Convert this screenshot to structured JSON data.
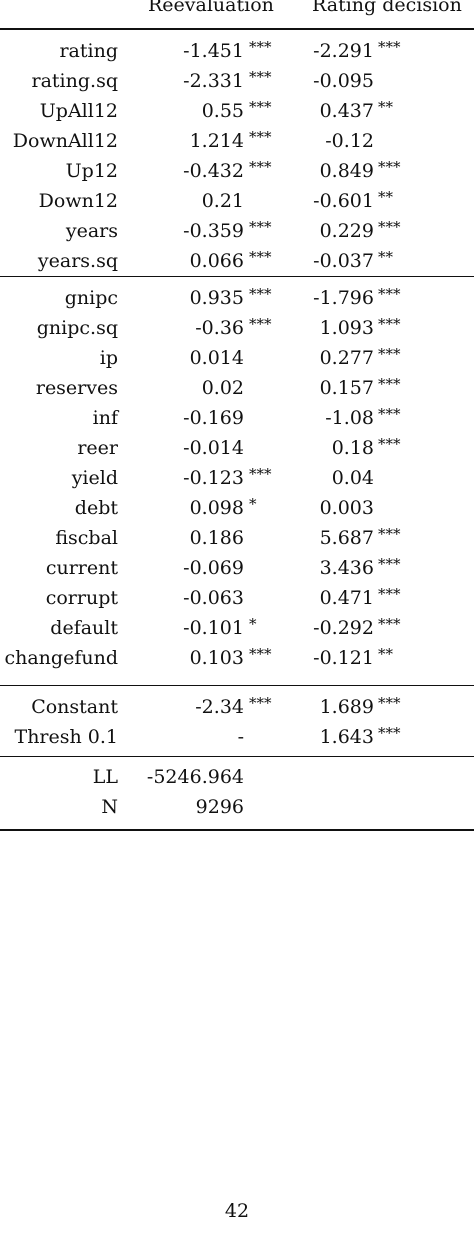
{
  "table": {
    "headers": [
      "Reevaluation",
      "Rating decision"
    ],
    "sections": [
      [
        {
          "label": "rating",
          "v1": "-1.451",
          "s1": "***",
          "v2": "-2.291",
          "s2": "***"
        },
        {
          "label": "rating.sq",
          "v1": "-2.331",
          "s1": "***",
          "v2": "-0.095",
          "s2": ""
        },
        {
          "label": "UpAll12",
          "v1": "0.55",
          "s1": "***",
          "v2": "0.437",
          "s2": "**"
        },
        {
          "label": "DownAll12",
          "v1": "1.214",
          "s1": "***",
          "v2": "-0.12",
          "s2": ""
        },
        {
          "label": "Up12",
          "v1": "-0.432",
          "s1": "***",
          "v2": "0.849",
          "s2": "***"
        },
        {
          "label": "Down12",
          "v1": "0.21",
          "s1": "",
          "v2": "-0.601",
          "s2": "**"
        },
        {
          "label": "years",
          "v1": "-0.359",
          "s1": "***",
          "v2": "0.229",
          "s2": "***"
        },
        {
          "label": "years.sq",
          "v1": "0.066",
          "s1": "***",
          "v2": "-0.037",
          "s2": "**"
        }
      ],
      [
        {
          "label": "gnipc",
          "v1": "0.935",
          "s1": "***",
          "v2": "-1.796",
          "s2": "***"
        },
        {
          "label": "gnipc.sq",
          "v1": "-0.36",
          "s1": "***",
          "v2": "1.093",
          "s2": "***"
        },
        {
          "label": "ip",
          "v1": "0.014",
          "s1": "",
          "v2": "0.277",
          "s2": "***"
        },
        {
          "label": "reserves",
          "v1": "0.02",
          "s1": "",
          "v2": "0.157",
          "s2": "***"
        },
        {
          "label": "inf",
          "v1": "-0.169",
          "s1": "",
          "v2": "-1.08",
          "s2": "***"
        },
        {
          "label": "reer",
          "v1": "-0.014",
          "s1": "",
          "v2": "0.18",
          "s2": "***"
        },
        {
          "label": "yield",
          "v1": "-0.123",
          "s1": "***",
          "v2": "0.04",
          "s2": ""
        },
        {
          "label": "debt",
          "v1": "0.098",
          "s1": "*",
          "v2": "0.003",
          "s2": ""
        },
        {
          "label": "fiscbal",
          "v1": "0.186",
          "s1": "",
          "v2": "5.687",
          "s2": "***"
        },
        {
          "label": "current",
          "v1": "-0.069",
          "s1": "",
          "v2": "3.436",
          "s2": "***"
        },
        {
          "label": "corrupt",
          "v1": "-0.063",
          "s1": "",
          "v2": "0.471",
          "s2": "***"
        },
        {
          "label": "default",
          "v1": "-0.101",
          "s1": "*",
          "v2": "-0.292",
          "s2": "***"
        },
        {
          "label": "changefund",
          "v1": "0.103",
          "s1": "***",
          "v2": "-0.121",
          "s2": "**"
        }
      ],
      [
        {
          "label": "Constant",
          "v1": "-2.34",
          "s1": "***",
          "v2": "1.689",
          "s2": "***"
        },
        {
          "label": "Thresh 0.1",
          "v1": "-",
          "s1": "",
          "v2": "1.643",
          "s2": "***"
        }
      ],
      [
        {
          "label": "LL",
          "v1": "-5246.964",
          "s1": "",
          "v2": "",
          "s2": ""
        },
        {
          "label": "N",
          "v1": "9296",
          "s1": "",
          "v2": "",
          "s2": ""
        }
      ]
    ]
  },
  "page_number": "42"
}
